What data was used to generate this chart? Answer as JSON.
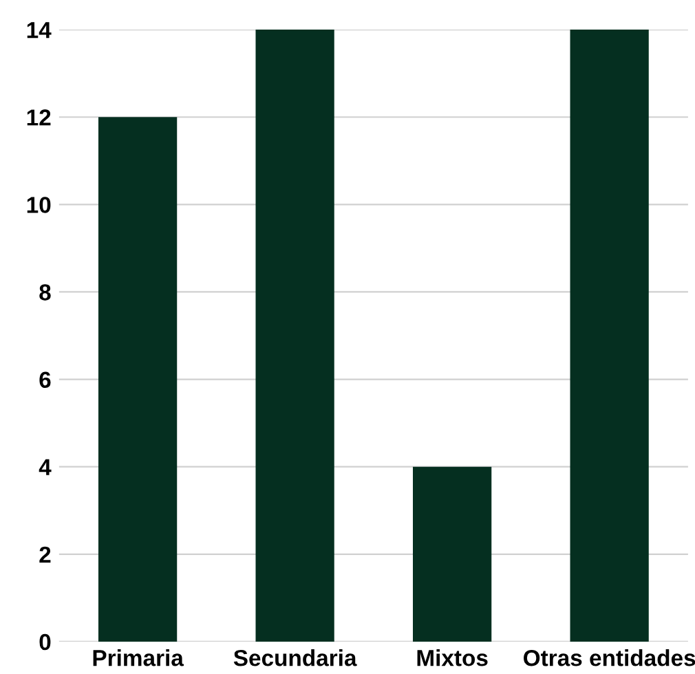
{
  "chart_data": {
    "type": "bar",
    "categories": [
      "Primaria",
      "Secundaria",
      "Mixtos",
      "Otras entidades"
    ],
    "values": [
      12,
      14,
      4,
      14
    ],
    "color": "#052f20",
    "ylim": [
      0,
      14
    ],
    "yticks": [
      0,
      2,
      4,
      6,
      8,
      10,
      12,
      14
    ],
    "grid": "y"
  }
}
